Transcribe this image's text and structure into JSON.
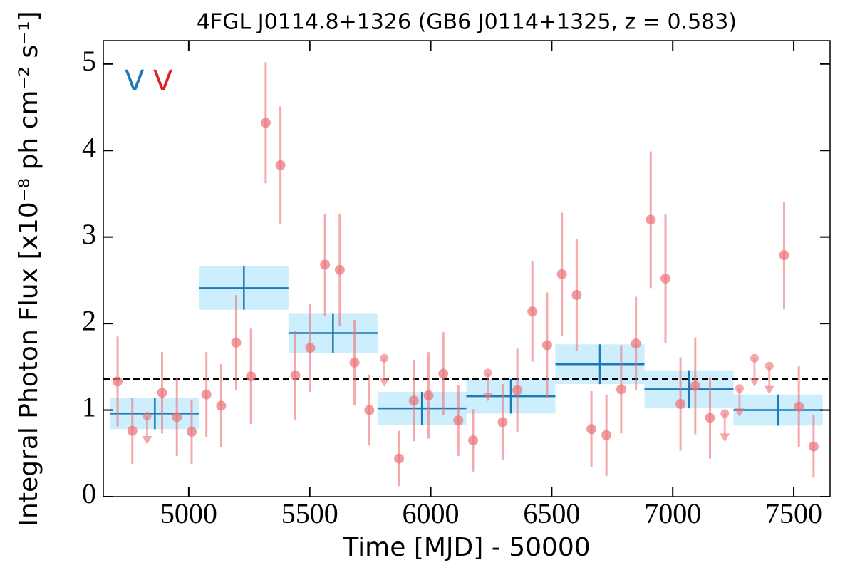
{
  "chart_data": {
    "type": "lightcurve",
    "title": "4FGL J0114.8+1326 (GB6 J0114+1325, z = 0.583)",
    "xlabel": "Time [MJD] - 50000",
    "ylabel": "Integral Photon Flux [x10⁻⁸ ph cm⁻² s⁻¹]",
    "annotations": [
      {
        "text": "V",
        "color": "#1f77b4"
      },
      {
        "text": "V",
        "color": "#d62728"
      }
    ],
    "xlim": [
      4647,
      7650
    ],
    "xticks": [
      5000,
      5500,
      6000,
      6500,
      7000,
      7500
    ],
    "ylim": [
      0,
      5.27
    ],
    "yticks": [
      0,
      1,
      2,
      3,
      4,
      5
    ],
    "mean_flux": 1.36,
    "binned": {
      "color": "#1f77b4",
      "band_color": "#cdeefc",
      "bins": [
        4676,
        5044,
        5412,
        5780,
        6147,
        6515,
        6883,
        7251,
        7619
      ],
      "values": [
        0.96,
        2.41,
        1.89,
        1.02,
        1.16,
        1.53,
        1.24,
        1.0
      ],
      "errors": [
        0.18,
        0.25,
        0.23,
        0.19,
        0.2,
        0.23,
        0.22,
        0.18
      ]
    },
    "detections": {
      "color": "#ec7076",
      "x": [
        4706,
        4767,
        4890,
        4951,
        5012,
        5073,
        5134,
        5196,
        5257,
        5318,
        5379,
        5440,
        5502,
        5563,
        5624,
        5685,
        5746,
        5869,
        5930,
        5991,
        6052,
        6114,
        6175,
        6297,
        6358,
        6420,
        6481,
        6542,
        6603,
        6664,
        6726,
        6787,
        6848,
        6909,
        6970,
        7032,
        7093,
        7154,
        7460,
        7521,
        7582
      ],
      "values": [
        1.33,
        0.76,
        1.2,
        0.92,
        0.75,
        1.18,
        1.05,
        1.78,
        1.39,
        4.32,
        3.83,
        1.4,
        1.72,
        2.68,
        2.62,
        1.55,
        1.0,
        0.44,
        1.11,
        1.17,
        1.42,
        0.88,
        0.65,
        0.86,
        1.23,
        2.14,
        1.75,
        2.57,
        2.33,
        0.78,
        0.71,
        1.24,
        1.77,
        3.2,
        2.52,
        1.07,
        1.28,
        0.91,
        2.79,
        1.04,
        0.58
      ],
      "errors": [
        0.52,
        0.38,
        0.47,
        0.45,
        0.37,
        0.49,
        0.48,
        0.55,
        0.55,
        0.7,
        0.68,
        0.51,
        0.51,
        0.59,
        0.65,
        0.49,
        0.41,
        0.32,
        0.47,
        0.5,
        0.48,
        0.41,
        0.36,
        0.44,
        0.48,
        0.58,
        0.61,
        0.71,
        0.65,
        0.44,
        0.47,
        0.51,
        0.54,
        0.79,
        0.74,
        0.54,
        0.56,
        0.47,
        0.62,
        0.47,
        0.36
      ]
    },
    "upper_limits": {
      "color": "#ec7076",
      "x": [
        4828,
        5808,
        6236,
        7215,
        7276,
        7338,
        7399
      ],
      "values": [
        0.93,
        1.6,
        1.43,
        0.96,
        1.25,
        1.6,
        1.51
      ]
    }
  }
}
